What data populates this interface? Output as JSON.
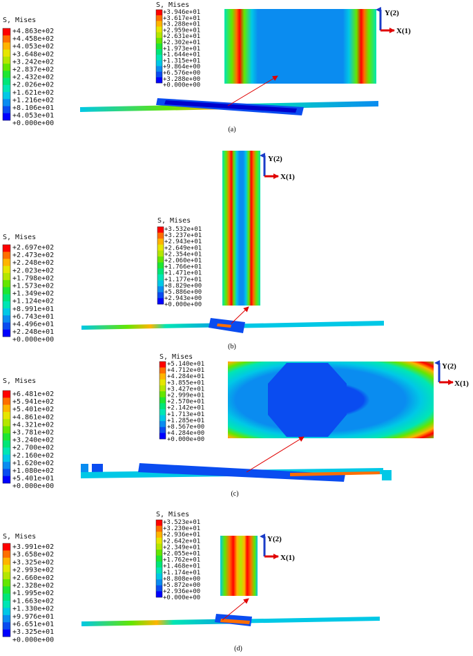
{
  "colors": [
    "#0000ff",
    "#0a4cf0",
    "#0a8cf0",
    "#00c8e6",
    "#00e6b4",
    "#00e678",
    "#1ee632",
    "#64e600",
    "#b4e600",
    "#e6e600",
    "#ffb400",
    "#ff6e00",
    "#ff0000"
  ],
  "panels": [
    {
      "caption": "(a)",
      "legend_title": "S, Mises",
      "legend_values": [
        "+4.863e+02",
        "+4.458e+02",
        "+4.053e+02",
        "+3.648e+02",
        "+3.242e+02",
        "+2.837e+02",
        "+2.432e+02",
        "+2.026e+02",
        "+1.621e+02",
        "+1.216e+02",
        "+8.106e+01",
        "+4.053e+01",
        "+0.000e+00"
      ],
      "zoom_legend_title": "S, Mises",
      "zoom_legend_values": [
        "+3.946e+01",
        "+3.617e+01",
        "+3.288e+01",
        "+2.959e+01",
        "+2.631e+01",
        "+2.302e+01",
        "+1.973e+01",
        "+1.644e+01",
        "+1.315e+01",
        "+9.864e+00",
        "+6.576e+00",
        "+3.288e+00",
        "+0.000e+00"
      ],
      "axis_y": "Y(2)",
      "axis_x": "X(1)"
    },
    {
      "caption": "(b)",
      "legend_title": "S, Mises",
      "legend_values": [
        "+2.697e+02",
        "+2.473e+02",
        "+2.248e+02",
        "+2.023e+02",
        "+1.798e+02",
        "+1.573e+02",
        "+1.349e+02",
        "+1.124e+02",
        "+8.991e+01",
        "+6.743e+01",
        "+4.496e+01",
        "+2.248e+01",
        "+0.000e+00"
      ],
      "zoom_legend_title": "S, Mises",
      "zoom_legend_values": [
        "+3.532e+01",
        "+3.237e+01",
        "+2.943e+01",
        "+2.649e+01",
        "+2.354e+01",
        "+2.060e+01",
        "+1.766e+01",
        "+1.471e+01",
        "+1.177e+01",
        "+8.829e+00",
        "+5.886e+00",
        "+2.943e+00",
        "+0.000e+00"
      ],
      "axis_y": "Y(2)",
      "axis_x": "X(1)"
    },
    {
      "caption": "(c)",
      "legend_title": "S, Mises",
      "legend_values": [
        "+6.481e+02",
        "+5.941e+02",
        "+5.401e+02",
        "+4.861e+02",
        "+4.321e+02",
        "+3.781e+02",
        "+3.240e+02",
        "+2.700e+02",
        "+2.160e+02",
        "+1.620e+02",
        "+1.080e+02",
        "+5.401e+01",
        "+0.000e+00"
      ],
      "zoom_legend_title": "S, Mises",
      "zoom_legend_values": [
        "+5.140e+01",
        "+4.712e+01",
        "+4.284e+01",
        "+3.855e+01",
        "+3.427e+01",
        "+2.999e+01",
        "+2.570e+01",
        "+2.142e+01",
        "+1.713e+01",
        "+1.285e+01",
        "+8.567e+00",
        "+4.284e+00",
        "+0.000e+00"
      ],
      "axis_y": "Y(2)",
      "axis_x": "X(1)"
    },
    {
      "caption": "(d)",
      "legend_title": "S, Mises",
      "legend_values": [
        "+3.991e+02",
        "+3.658e+02",
        "+3.325e+02",
        "+2.993e+02",
        "+2.660e+02",
        "+2.328e+02",
        "+1.995e+02",
        "+1.663e+02",
        "+1.330e+02",
        "+9.976e+01",
        "+6.651e+01",
        "+3.325e+01",
        "+0.000e+00"
      ],
      "zoom_legend_title": "S, Mises",
      "zoom_legend_values": [
        "+3.523e+01",
        "+3.230e+01",
        "+2.936e+01",
        "+2.642e+01",
        "+2.349e+01",
        "+2.055e+01",
        "+1.762e+01",
        "+1.468e+01",
        "+1.174e+01",
        "+8.808e+00",
        "+5.872e+00",
        "+2.936e+00",
        "+0.000e+00"
      ],
      "axis_y": "Y(2)",
      "axis_x": "X(1)"
    }
  ]
}
